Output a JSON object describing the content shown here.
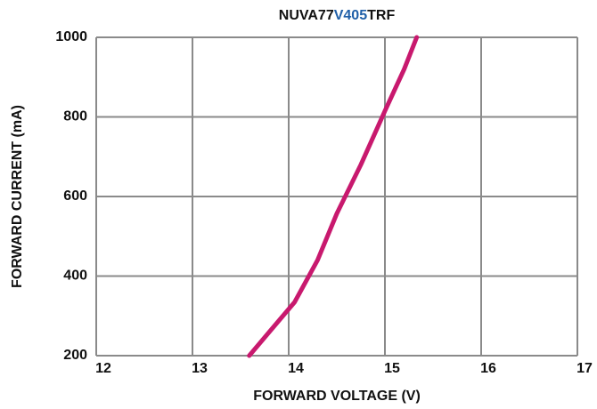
{
  "chart_data": {
    "type": "line",
    "title_parts": [
      {
        "text": "NUVA77",
        "color": "#111111"
      },
      {
        "text": "V405",
        "color": "#1f5fa8"
      },
      {
        "text": "TRF",
        "color": "#111111"
      }
    ],
    "xlabel": "FORWARD VOLTAGE (V)",
    "ylabel": "FORWARD CURRENT (mA)",
    "x": [
      13.59,
      13.8,
      14.06,
      14.3,
      14.5,
      14.75,
      15.0,
      15.2,
      15.33
    ],
    "series": [
      {
        "name": "NUVA77V405TRF",
        "color": "#c8196e",
        "values": [
          200,
          260,
          334,
          440,
          557,
          680,
          815,
          920,
          1000
        ]
      }
    ],
    "xlim": [
      12,
      17
    ],
    "xticks": [
      12,
      13,
      14,
      15,
      16,
      17
    ],
    "ylim": [
      200,
      1000
    ],
    "yticks": [
      200,
      400,
      600,
      800,
      1000
    ],
    "grid": true
  }
}
